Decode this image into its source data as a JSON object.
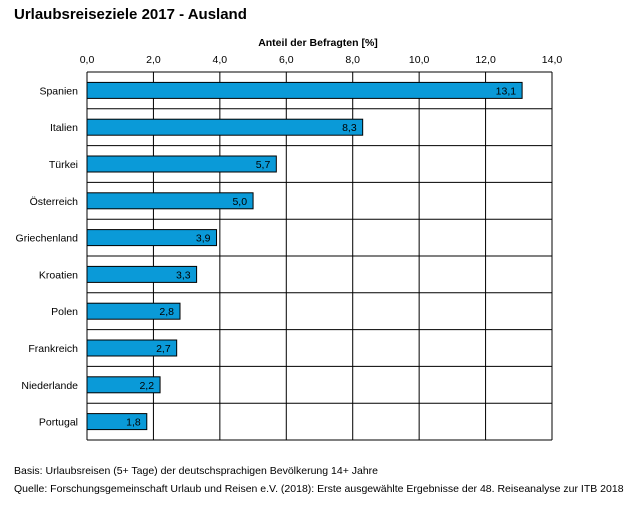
{
  "chart_data": {
    "type": "bar",
    "orientation": "horizontal",
    "title": "Urlaubsreiseziele 2017 - Ausland",
    "xlabel": "Anteil der Befragten [%]",
    "xlim": [
      0,
      14
    ],
    "ticks": [
      "0,0",
      "2,0",
      "4,0",
      "6,0",
      "8,0",
      "10,0",
      "12,0",
      "14,0"
    ],
    "tick_values": [
      0,
      2,
      4,
      6,
      8,
      10,
      12,
      14
    ],
    "categories": [
      "Spanien",
      "Italien",
      "Türkei",
      "Österreich",
      "Griechenland",
      "Kroatien",
      "Polen",
      "Frankreich",
      "Niederlande",
      "Portugal"
    ],
    "values": [
      13.1,
      8.3,
      5.7,
      5.0,
      3.9,
      3.3,
      2.8,
      2.7,
      2.2,
      1.8
    ],
    "value_labels": [
      "13,1",
      "8,3",
      "5,7",
      "5,0",
      "3,9",
      "3,3",
      "2,8",
      "2,7",
      "2,2",
      "1,8"
    ],
    "grid": true,
    "bar_color": "#0a9ad8"
  },
  "footnotes": {
    "basis": "Basis: Urlaubsreisen (5+ Tage) der deutschsprachigen Bevölkerung 14+ Jahre",
    "source": "Quelle: Forschungsgemeinschaft Urlaub und Reisen e.V. (2018): Erste ausgewählte Ergebnisse der 48. Reiseanalyse zur ITB 2018"
  }
}
